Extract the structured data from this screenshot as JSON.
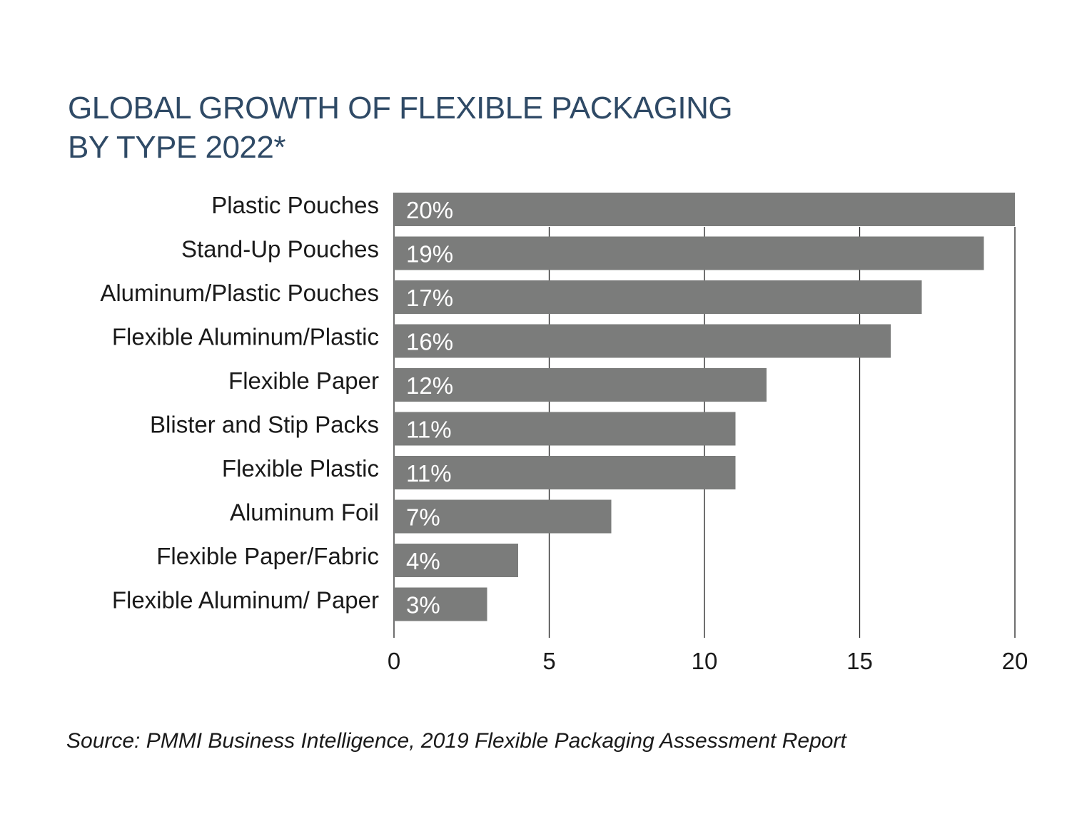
{
  "chart_data": {
    "type": "bar",
    "orientation": "horizontal",
    "title_lines": [
      "GLOBAL GROWTH OF FLEXIBLE PACKAGING",
      "BY TYPE 2022*"
    ],
    "categories": [
      "Plastic Pouches",
      "Stand-Up Pouches",
      "Aluminum/Plastic Pouches",
      "Flexible Aluminum/Plastic",
      "Flexible Paper",
      "Blister and Stip Packs",
      "Flexible Plastic",
      "Aluminum Foil",
      "Flexible Paper/Fabric",
      "Flexible Aluminum/ Paper"
    ],
    "values": [
      20,
      19,
      17,
      16,
      12,
      11,
      11,
      7,
      4,
      3
    ],
    "data_labels": [
      "20%",
      "19%",
      "17%",
      "16%",
      "12%",
      "11%",
      "11%",
      "7%",
      "4%",
      "3%"
    ],
    "xlim": [
      0,
      20
    ],
    "xticks": [
      0,
      5,
      10,
      15,
      20
    ],
    "xtick_labels": [
      "0",
      "5",
      "10",
      "15",
      "20"
    ],
    "grid": "vertical",
    "legend": "none",
    "bar_color": "#7b7c7b",
    "label_color": "#ffffff",
    "source": "Source: PMMI Business Intelligence, 2019 Flexible Packaging Assessment Report"
  },
  "colors": {
    "title": "#2f4a66",
    "bar": "#7b7c7b",
    "grid": "#222222",
    "text": "#1a1a1a"
  }
}
